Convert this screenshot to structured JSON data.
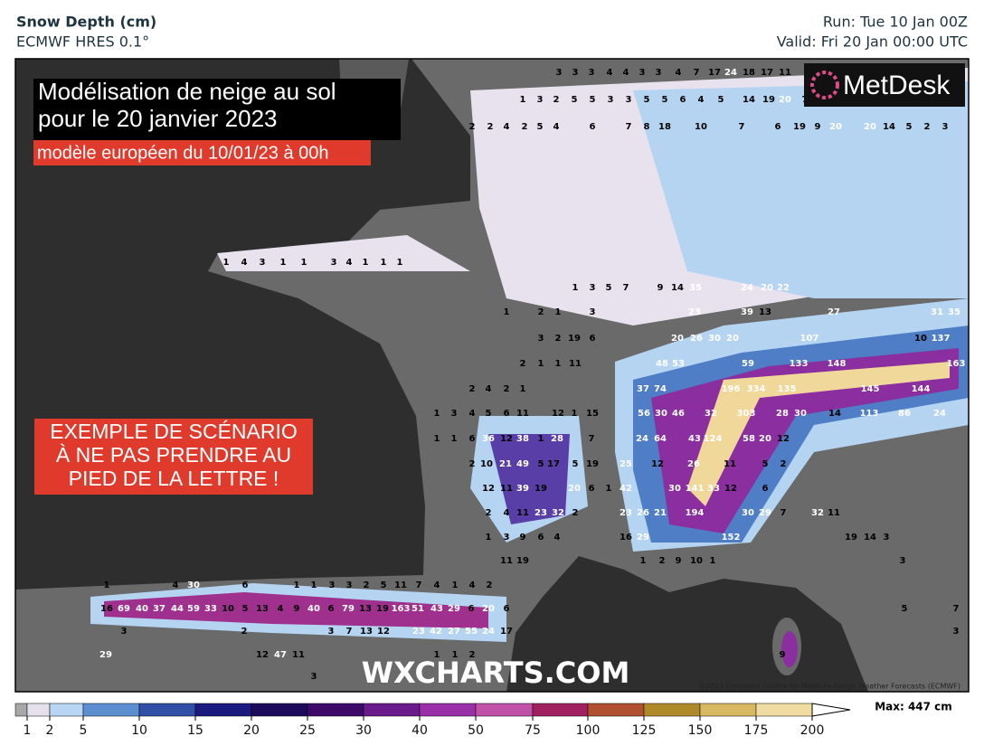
{
  "header": {
    "title": "Snow Depth (cm)",
    "model": "ECMWF HRES 0.1°",
    "run": "Run: Tue 10 Jan 00Z",
    "valid": "Valid: Fri 20 Jan 00:00 UTC"
  },
  "overlay": {
    "title_lines": [
      "Modélisation de neige au sol",
      "pour le 20 janvier 2023"
    ],
    "subtitle": "modèle européen du 10/01/23 à 00h",
    "warning_lines": [
      "EXEMPLE DE SCÉNARIO",
      "À NE PAS PRENDRE AU",
      "PIED DE LA LETTRE !"
    ]
  },
  "logo": "MetDesk",
  "watermark": "WXCHARTS.COM",
  "copyright": "©2023 European Centre for Medium-Range Weather Forecasts (ECMWF)",
  "map": {
    "label_rows": [
      [
        3,
        3,
        3,
        4,
        4,
        3,
        3,
        4,
        7,
        17,
        24,
        18,
        17,
        11
      ],
      [
        1,
        3,
        2,
        5,
        5,
        3,
        3,
        5,
        5,
        6,
        4,
        5,
        14,
        19,
        20,
        7
      ],
      [
        2,
        2,
        4,
        2,
        5,
        4,
        6,
        7,
        8,
        18,
        10,
        7,
        6,
        19,
        9,
        20,
        20,
        14,
        5,
        2,
        3
      ],
      [
        1,
        4,
        3,
        1,
        1,
        3,
        4,
        1,
        1,
        1
      ],
      [
        1,
        3,
        5,
        7,
        9,
        14,
        35,
        24,
        20,
        22
      ],
      [
        1,
        2,
        1,
        3,
        23,
        39,
        13,
        27,
        31,
        35
      ],
      [
        3,
        2,
        19,
        6,
        20,
        26,
        30,
        20,
        107,
        10,
        137
      ],
      [
        2,
        1,
        1,
        11,
        48,
        53,
        59,
        133,
        148,
        163
      ],
      [
        2,
        4,
        2,
        1,
        37,
        74,
        196,
        334,
        135,
        145,
        144
      ],
      [
        1,
        3,
        4,
        5,
        6,
        11,
        12,
        1,
        15,
        56,
        30,
        46,
        32,
        303,
        28,
        30,
        14,
        113,
        86,
        24
      ],
      [
        1,
        1,
        6,
        36,
        12,
        38,
        1,
        28,
        7,
        24,
        64,
        43,
        124,
        58,
        20,
        12
      ],
      [
        2,
        10,
        21,
        49,
        5,
        17,
        5,
        19,
        25,
        12,
        26,
        11,
        5,
        2
      ],
      [
        12,
        11,
        39,
        19,
        20,
        6,
        1,
        42,
        30,
        141,
        33,
        12,
        6
      ],
      [
        2,
        4,
        11,
        23,
        32,
        2,
        23,
        26,
        21,
        194,
        30,
        29,
        7,
        32,
        11
      ],
      [
        1,
        3,
        9,
        6,
        4,
        16,
        29,
        152,
        19,
        14,
        3
      ],
      [
        11,
        19,
        1,
        2,
        9,
        10,
        1,
        3
      ],
      [
        1,
        4,
        30,
        6,
        1,
        1,
        3,
        3,
        2,
        5,
        11,
        7,
        4,
        1,
        4,
        2
      ],
      [
        16,
        69,
        40,
        37,
        44,
        59,
        33,
        10,
        5,
        13,
        4,
        9,
        40,
        6,
        79,
        13,
        19,
        163,
        51,
        43,
        29,
        6,
        20,
        6,
        5,
        7
      ],
      [
        3,
        2,
        3,
        7,
        13,
        12,
        23,
        42,
        27,
        55,
        24,
        17,
        3
      ],
      [
        29,
        12,
        47,
        11,
        1,
        1,
        2,
        9
      ],
      [
        3
      ]
    ]
  },
  "legend": {
    "ticks": [
      1,
      2,
      5,
      10,
      15,
      20,
      25,
      30,
      40,
      50,
      75,
      100,
      125,
      150,
      175,
      200
    ],
    "max": "Max: 447 cm"
  }
}
